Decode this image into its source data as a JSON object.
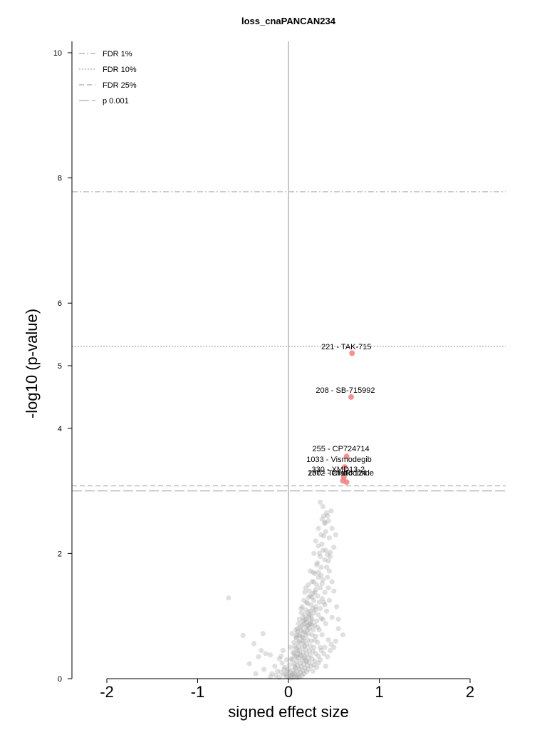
{
  "chart_data": {
    "type": "scatter",
    "title": "loss_cnaPANCAN234",
    "xlabel": "signed effect size",
    "ylabel": "-log10 (p-value)",
    "xlim": [
      -2.4,
      2.4
    ],
    "ylim": [
      0,
      10.2
    ],
    "xticks": [
      -2,
      -1,
      0,
      1,
      2
    ],
    "xtick_labels": [
      "-2",
      "-1",
      "0",
      "1",
      "2"
    ],
    "yticks": [
      0,
      2,
      4,
      5,
      6,
      8,
      10
    ],
    "ytick_labels": [
      "0",
      "2",
      "4",
      "5",
      "6",
      "8",
      "10"
    ],
    "grid": false,
    "legend_position": "top-left",
    "thresholds": [
      {
        "name": "FDR 1%",
        "y": 7.78,
        "style": "dashdot",
        "color": "#aaaaaa"
      },
      {
        "name": "FDR 10%",
        "y": 5.31,
        "style": "dotted",
        "color": "#aaaaaa"
      },
      {
        "name": "FDR 25%",
        "y": 3.08,
        "style": "dashed",
        "color": "#aaaaaa"
      },
      {
        "name": "p 0.001",
        "y": 3.0,
        "style": "longdash",
        "color": "#aaaaaa"
      }
    ],
    "zero_line": {
      "x": 0,
      "color": "#c8c8c8"
    },
    "highlight_color": "#f08080",
    "background_color": "#999999",
    "highlighted": [
      {
        "label": "221 - TAK-715",
        "x": 0.7,
        "y": 5.2
      },
      {
        "label": "208 - SB-715992",
        "x": 0.69,
        "y": 4.5
      },
      {
        "label": "255 - CP724714",
        "x": 0.64,
        "y": 3.55
      },
      {
        "label": "1033 - Vismodegib",
        "x": 0.62,
        "y": 3.38
      },
      {
        "label": "330 - XMD13-2",
        "x": 0.61,
        "y": 3.22
      },
      {
        "label": "1372 - CHIR-124",
        "x": 0.6,
        "y": 3.16
      },
      {
        "label": "200 - Tenalidomide",
        "x": 0.64,
        "y": 3.14
      }
    ],
    "points": [
      [
        0.35,
        2.82
      ],
      [
        0.38,
        2.75
      ],
      [
        0.42,
        2.65
      ],
      [
        0.37,
        2.55
      ],
      [
        0.4,
        2.48
      ],
      [
        0.43,
        2.6
      ],
      [
        0.33,
        2.4
      ],
      [
        0.36,
        2.3
      ],
      [
        0.41,
        2.35
      ],
      [
        0.3,
        2.2
      ],
      [
        0.33,
        2.12
      ],
      [
        0.38,
        2.05
      ],
      [
        0.28,
        2.0
      ],
      [
        0.35,
        1.95
      ],
      [
        0.4,
        1.9
      ],
      [
        0.44,
        1.88
      ],
      [
        0.31,
        1.82
      ],
      [
        0.36,
        1.78
      ],
      [
        0.24,
        1.72
      ],
      [
        0.29,
        1.68
      ],
      [
        0.33,
        1.62
      ],
      [
        0.38,
        1.58
      ],
      [
        0.26,
        1.55
      ],
      [
        0.31,
        1.5
      ],
      [
        0.35,
        1.45
      ],
      [
        0.43,
        1.62
      ],
      [
        0.19,
        1.45
      ],
      [
        0.23,
        1.4
      ],
      [
        0.27,
        1.36
      ],
      [
        0.32,
        1.32
      ],
      [
        0.37,
        1.28
      ],
      [
        0.22,
        1.3
      ],
      [
        0.28,
        1.25
      ],
      [
        0.17,
        1.25
      ],
      [
        0.21,
        1.2
      ],
      [
        0.25,
        1.18
      ],
      [
        0.3,
        1.15
      ],
      [
        0.35,
        1.12
      ],
      [
        0.4,
        1.18
      ],
      [
        0.15,
        1.15
      ],
      [
        0.19,
        1.1
      ],
      [
        0.24,
        1.08
      ],
      [
        0.28,
        1.05
      ],
      [
        0.33,
        1.02
      ],
      [
        0.14,
        1.05
      ],
      [
        0.18,
        1.02
      ],
      [
        0.22,
        0.98
      ],
      [
        0.26,
        0.95
      ],
      [
        0.31,
        0.92
      ],
      [
        0.36,
        0.96
      ],
      [
        0.12,
        0.95
      ],
      [
        0.16,
        0.92
      ],
      [
        0.2,
        0.9
      ],
      [
        0.24,
        0.88
      ],
      [
        0.29,
        0.85
      ],
      [
        0.11,
        0.88
      ],
      [
        0.15,
        0.85
      ],
      [
        0.19,
        0.82
      ],
      [
        0.23,
        0.8
      ],
      [
        0.27,
        0.78
      ],
      [
        0.32,
        0.82
      ],
      [
        0.1,
        0.8
      ],
      [
        0.14,
        0.77
      ],
      [
        0.18,
        0.74
      ],
      [
        0.22,
        0.72
      ],
      [
        0.26,
        0.7
      ],
      [
        0.3,
        0.68
      ],
      [
        0.13,
        0.68
      ],
      [
        0.17,
        0.65
      ],
      [
        0.21,
        0.62
      ],
      [
        0.25,
        0.6
      ],
      [
        0.09,
        0.65
      ],
      [
        0.12,
        0.6
      ],
      [
        0.16,
        0.57
      ],
      [
        0.2,
        0.55
      ],
      [
        0.24,
        0.52
      ],
      [
        0.28,
        0.5
      ],
      [
        0.11,
        0.52
      ],
      [
        0.15,
        0.5
      ],
      [
        0.19,
        0.47
      ],
      [
        0.23,
        0.45
      ],
      [
        0.08,
        0.48
      ],
      [
        0.12,
        0.45
      ],
      [
        0.16,
        0.42
      ],
      [
        0.2,
        0.4
      ],
      [
        0.24,
        0.38
      ],
      [
        0.1,
        0.4
      ],
      [
        0.14,
        0.37
      ],
      [
        0.18,
        0.35
      ],
      [
        0.22,
        0.33
      ],
      [
        0.07,
        0.36
      ],
      [
        0.11,
        0.33
      ],
      [
        0.15,
        0.3
      ],
      [
        0.19,
        0.28
      ],
      [
        0.23,
        0.26
      ],
      [
        0.09,
        0.28
      ],
      [
        0.13,
        0.25
      ],
      [
        0.17,
        0.23
      ],
      [
        0.21,
        0.21
      ],
      [
        0.06,
        0.24
      ],
      [
        0.1,
        0.21
      ],
      [
        0.14,
        0.19
      ],
      [
        0.18,
        0.17
      ],
      [
        0.08,
        0.17
      ],
      [
        0.12,
        0.15
      ],
      [
        0.16,
        0.13
      ],
      [
        0.2,
        0.11
      ],
      [
        0.05,
        0.14
      ],
      [
        0.09,
        0.12
      ],
      [
        0.13,
        0.1
      ],
      [
        0.17,
        0.08
      ],
      [
        0.07,
        0.08
      ],
      [
        0.11,
        0.06
      ],
      [
        0.15,
        0.05
      ],
      [
        0.04,
        0.06
      ],
      [
        0.08,
        0.04
      ],
      [
        0.12,
        0.03
      ],
      [
        0.02,
        0.05
      ],
      [
        0.06,
        0.02
      ],
      [
        0.1,
        0.02
      ],
      [
        0.0,
        0.03
      ],
      [
        0.03,
        0.01
      ],
      [
        -0.02,
        0.04
      ],
      [
        -0.05,
        0.06
      ],
      [
        -0.08,
        0.1
      ],
      [
        -0.1,
        0.02
      ],
      [
        -0.14,
        0.05
      ],
      [
        -0.18,
        0.08
      ],
      [
        -0.2,
        0.03
      ],
      [
        -0.04,
        0.18
      ],
      [
        -0.07,
        0.25
      ],
      [
        -0.02,
        0.3
      ],
      [
        -0.05,
        0.15
      ],
      [
        0.01,
        0.22
      ],
      [
        -0.01,
        0.12
      ],
      [
        -0.03,
        0.08
      ],
      [
        0.03,
        0.32
      ],
      [
        0.05,
        0.42
      ],
      [
        0.02,
        0.5
      ],
      [
        0.06,
        0.58
      ],
      [
        0.08,
        0.66
      ],
      [
        0.04,
        0.72
      ],
      [
        0.1,
        0.75
      ],
      [
        0.25,
        1.0
      ],
      [
        0.3,
        1.1
      ],
      [
        0.34,
        1.22
      ],
      [
        0.27,
        1.12
      ],
      [
        0.23,
        1.02
      ],
      [
        0.2,
        0.95
      ],
      [
        0.17,
        0.88
      ],
      [
        0.26,
        0.86
      ],
      [
        0.45,
        1.72
      ],
      [
        0.48,
        1.55
      ],
      [
        0.4,
        1.38
      ],
      [
        0.44,
        1.45
      ],
      [
        0.37,
        1.52
      ],
      [
        0.42,
        1.78
      ],
      [
        0.46,
        1.95
      ],
      [
        0.5,
        2.1
      ],
      [
        0.45,
        2.25
      ],
      [
        0.48,
        2.4
      ],
      [
        0.39,
        2.6
      ],
      [
        0.47,
        2.68
      ],
      [
        0.52,
        2.3
      ],
      [
        0.36,
        1.65
      ],
      [
        0.33,
        1.7
      ],
      [
        0.29,
        1.38
      ],
      [
        0.26,
        1.3
      ],
      [
        0.3,
        1.42
      ],
      [
        0.39,
        1.22
      ],
      [
        0.42,
        1.08
      ],
      [
        0.45,
        1.25
      ],
      [
        0.5,
        1.4
      ],
      [
        0.53,
        1.15
      ],
      [
        0.55,
        0.95
      ],
      [
        0.48,
        0.98
      ],
      [
        0.38,
        0.95
      ],
      [
        0.41,
        0.88
      ],
      [
        0.34,
        0.78
      ],
      [
        0.37,
        0.7
      ],
      [
        0.29,
        0.62
      ],
      [
        0.32,
        0.58
      ],
      [
        0.35,
        0.5
      ],
      [
        0.27,
        0.44
      ],
      [
        0.3,
        0.4
      ],
      [
        0.33,
        0.36
      ],
      [
        0.26,
        0.32
      ],
      [
        0.29,
        0.28
      ],
      [
        0.25,
        0.2
      ],
      [
        0.22,
        0.15
      ],
      [
        0.27,
        0.12
      ],
      [
        0.2,
        0.28
      ],
      [
        0.17,
        0.33
      ],
      [
        0.13,
        0.38
      ],
      [
        0.1,
        0.45
      ],
      [
        0.07,
        0.52
      ],
      [
        0.12,
        0.7
      ],
      [
        0.08,
        0.78
      ],
      [
        0.06,
        0.4
      ],
      [
        0.04,
        0.3
      ],
      [
        0.16,
        0.6
      ],
      [
        0.19,
        0.7
      ],
      [
        0.21,
        0.78
      ],
      [
        0.23,
        0.86
      ],
      [
        0.18,
        0.94
      ],
      [
        0.22,
        1.06
      ],
      [
        0.16,
        0.98
      ],
      [
        0.14,
        1.12
      ],
      [
        0.2,
        1.22
      ],
      [
        0.24,
        1.32
      ],
      [
        0.18,
        1.38
      ],
      [
        0.22,
        1.5
      ],
      [
        0.28,
        1.55
      ],
      [
        0.27,
        1.7
      ],
      [
        0.32,
        1.85
      ],
      [
        0.34,
        2.0
      ],
      [
        0.37,
        2.15
      ],
      [
        0.39,
        2.28
      ],
      [
        0.41,
        2.05
      ],
      [
        0.43,
        1.98
      ],
      [
        0.46,
        2.02
      ],
      [
        0.4,
        2.5
      ],
      [
        0.44,
        2.52
      ],
      [
        -0.66,
        1.29
      ],
      [
        -0.5,
        0.69
      ],
      [
        -0.38,
        0.56
      ],
      [
        -0.43,
        0.24
      ],
      [
        -0.28,
        0.72
      ],
      [
        -0.3,
        0.45
      ],
      [
        -0.25,
        0.4
      ],
      [
        -0.33,
        0.35
      ],
      [
        -0.36,
        0.08
      ],
      [
        -0.27,
        0.15
      ],
      [
        -0.2,
        0.38
      ],
      [
        -0.15,
        0.2
      ],
      [
        -0.12,
        0.12
      ],
      [
        -0.1,
        0.32
      ],
      [
        -0.06,
        0.45
      ],
      [
        -0.08,
        0.36
      ],
      [
        0.0,
        0.15
      ],
      [
        0.02,
        0.1
      ],
      [
        0.05,
        0.08
      ],
      [
        0.07,
        0.2
      ],
      [
        0.09,
        0.35
      ],
      [
        0.55,
        0.8
      ],
      [
        0.6,
        0.7
      ],
      [
        0.52,
        0.6
      ],
      [
        0.47,
        0.55
      ],
      [
        0.44,
        0.62
      ],
      [
        0.4,
        0.5
      ],
      [
        0.36,
        0.45
      ],
      [
        0.33,
        0.25
      ],
      [
        0.31,
        0.18
      ],
      [
        0.28,
        0.22
      ],
      [
        0.35,
        0.3
      ],
      [
        0.39,
        0.4
      ],
      [
        0.43,
        0.35
      ],
      [
        0.46,
        0.45
      ],
      [
        0.5,
        0.5
      ],
      [
        0.41,
        0.2
      ],
      [
        0.18,
        0.52
      ],
      [
        0.15,
        0.66
      ],
      [
        0.11,
        0.58
      ],
      [
        0.09,
        0.7
      ],
      [
        0.13,
        0.82
      ],
      [
        0.16,
        0.75
      ],
      [
        0.21,
        0.85
      ],
      [
        0.25,
        0.92
      ]
    ]
  }
}
